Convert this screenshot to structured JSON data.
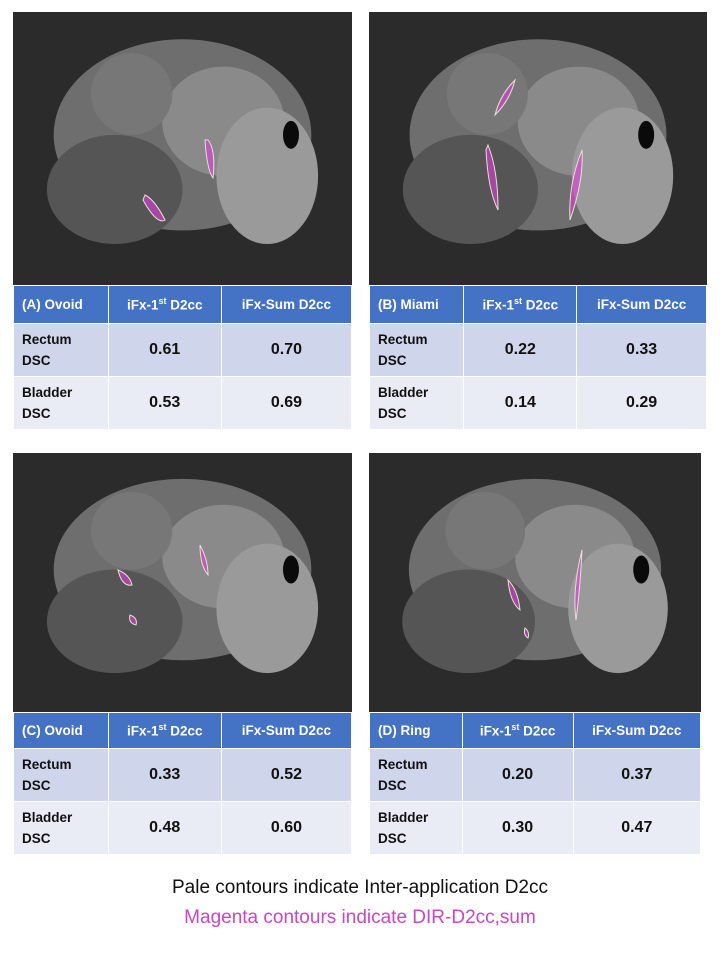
{
  "panels": [
    {
      "header": {
        "label": "(A) Ovoid",
        "col1": {
          "main": "iFx-1",
          "sup": "st",
          "tail": " D2cc"
        },
        "col2": "iFx-Sum D2cc"
      },
      "rows": [
        {
          "label": [
            "Rectum",
            "DSC"
          ],
          "values": [
            "0.61",
            "0.70"
          ]
        },
        {
          "label": [
            "Bladder",
            "DSC"
          ],
          "values": [
            "0.53",
            "0.69"
          ]
        }
      ]
    },
    {
      "header": {
        "label": "(B) Miami",
        "col1": {
          "main": "iFx-1",
          "sup": "st",
          "tail": " D2cc"
        },
        "col2": "iFx-Sum D2cc"
      },
      "rows": [
        {
          "label": [
            "Rectum",
            "DSC"
          ],
          "values": [
            "0.22",
            "0.33"
          ]
        },
        {
          "label": [
            "Bladder",
            "DSC"
          ],
          "values": [
            "0.14",
            "0.29"
          ]
        }
      ]
    },
    {
      "header": {
        "label": "(C) Ovoid",
        "col1": {
          "main": "iFx-1",
          "sup": "st",
          "tail": " D2cc"
        },
        "col2": "iFx-Sum D2cc"
      },
      "rows": [
        {
          "label": [
            "Rectum",
            "DSC"
          ],
          "values": [
            "0.33",
            "0.52"
          ]
        },
        {
          "label": [
            "Bladder",
            "DSC"
          ],
          "values": [
            "0.48",
            "0.60"
          ]
        }
      ]
    },
    {
      "header": {
        "label": "(D) Ring",
        "col1": {
          "main": "iFx-1",
          "sup": "st",
          "tail": " D2cc"
        },
        "col2": "iFx-Sum D2cc"
      },
      "rows": [
        {
          "label": [
            "Rectum",
            "DSC"
          ],
          "values": [
            "0.20",
            "0.37"
          ]
        },
        {
          "label": [
            "Bladder",
            "DSC"
          ],
          "values": [
            "0.30",
            "0.47"
          ]
        }
      ]
    }
  ],
  "caption": {
    "line1": "Pale contours indicate Inter-application D2cc",
    "line2": "Magenta contours indicate DIR-D2cc,sum"
  }
}
